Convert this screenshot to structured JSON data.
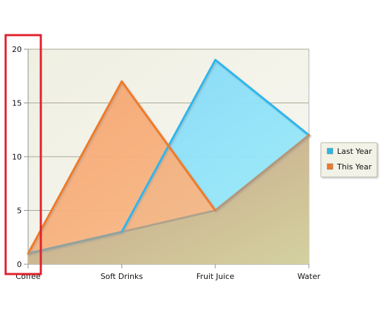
{
  "chart_data": {
    "type": "area",
    "categories": [
      "Coffee",
      "Soft Drinks",
      "Fruit Juice",
      "Water"
    ],
    "series": [
      {
        "name": "Last Year",
        "values": [
          1,
          3,
          19,
          12
        ],
        "color": "#2bb7ee"
      },
      {
        "name": "This Year",
        "values": [
          1,
          17,
          5,
          12
        ],
        "color": "#f07a28"
      }
    ],
    "title": "",
    "xlabel": "",
    "ylabel": "",
    "ylim": [
      0,
      20
    ],
    "yticks": [
      "0",
      "5",
      "10",
      "15",
      "20"
    ],
    "grid": true,
    "legend_position": "right",
    "highlight": {
      "target": "y-axis",
      "color": "#e0212b"
    },
    "colors": {
      "plot_bg_start": "#f0efe2",
      "plot_bg_end": "#f7f7f0",
      "grid": "#a9a796",
      "axis": "#8f8f8f",
      "overlap_fill": "#c8b58a"
    }
  }
}
